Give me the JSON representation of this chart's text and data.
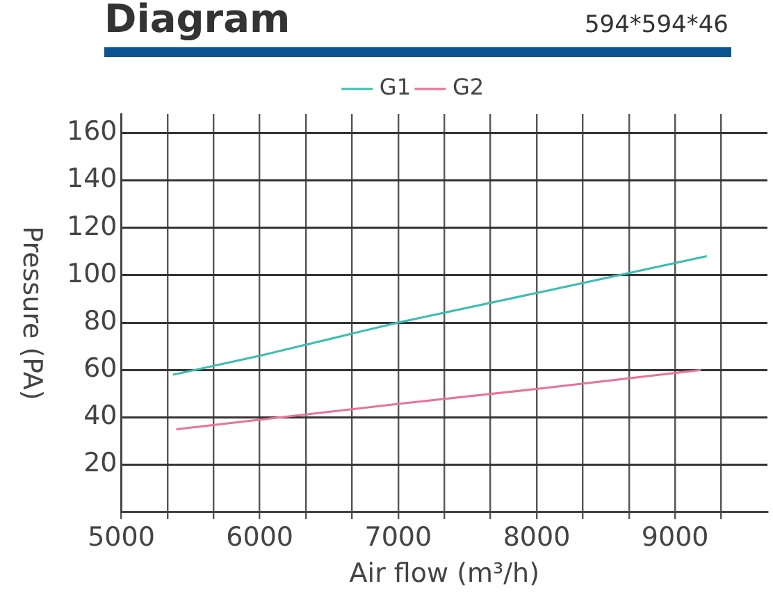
{
  "chart_data": {
    "type": "line",
    "title": "Diagram",
    "subtitle": "594*594*46",
    "xlabel": "Air flow (m³/h)",
    "ylabel": "Pressure (PA)",
    "series": [
      {
        "name": "G1",
        "color": "#3dbdb0",
        "x": [
          5373,
          6000,
          7000,
          8000,
          9229
        ],
        "values": [
          58,
          66,
          80,
          92.5,
          108
        ]
      },
      {
        "name": "G2",
        "color": "#e8729c",
        "x": [
          5397,
          6000,
          7000,
          8000,
          9187
        ],
        "values": [
          35,
          39,
          45.7,
          52,
          60
        ]
      }
    ],
    "xlim": [
      5000,
      9667
    ],
    "xticks": [
      5000,
      {
        "value": 5333,
        "label": null
      },
      {
        "value": 5667,
        "label": null
      },
      6000,
      {
        "value": 6333,
        "label": null
      },
      {
        "value": 6667,
        "label": null
      },
      7000,
      {
        "value": 7333,
        "label": null
      },
      {
        "value": 7667,
        "label": null
      },
      8000,
      {
        "value": 8333,
        "label": null
      },
      {
        "value": 8667,
        "label": null
      },
      9000,
      {
        "value": 9333,
        "label": null
      }
    ],
    "ylim": [
      0,
      168
    ],
    "yticks": [
      20,
      40,
      60,
      80,
      100,
      120,
      140,
      160
    ],
    "grid": true,
    "legend": "top",
    "marker": "none",
    "line_style": "solid"
  }
}
